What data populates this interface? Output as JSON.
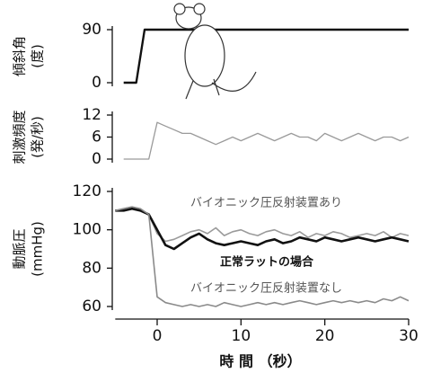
{
  "chart_data": [
    {
      "type": "line",
      "ylabel": [
        "傾斜角",
        "(度)"
      ],
      "xlim": [
        -5,
        30
      ],
      "ylim": [
        0,
        90
      ],
      "yticks": [
        0,
        90
      ],
      "x": [
        -4,
        -2.5,
        -1.5,
        30
      ],
      "values": [
        0,
        0,
        90,
        90
      ],
      "color": "#111111"
    },
    {
      "type": "line",
      "ylabel": [
        "刺激頻度",
        "(発/秒)"
      ],
      "xlim": [
        -5,
        30
      ],
      "ylim": [
        0,
        12
      ],
      "yticks": [
        0,
        6,
        12
      ],
      "x": [
        -4,
        -3,
        -2,
        -1,
        0,
        1,
        2,
        3,
        4,
        5,
        6,
        7,
        8,
        9,
        10,
        11,
        12,
        13,
        14,
        15,
        16,
        17,
        18,
        19,
        20,
        21,
        22,
        23,
        24,
        25,
        26,
        27,
        28,
        29,
        30
      ],
      "values": [
        0,
        0,
        0,
        0,
        10,
        9,
        8,
        7,
        7,
        6,
        5,
        4,
        5,
        6,
        5,
        6,
        7,
        6,
        5,
        6,
        7,
        6,
        6,
        5,
        7,
        6,
        5,
        6,
        7,
        6,
        5,
        6,
        6,
        5,
        6
      ],
      "color": "#9a9a9a"
    },
    {
      "type": "line",
      "ylabel": [
        "動脈圧",
        "(mmHg)"
      ],
      "xlabel": "時 間 （秒）",
      "xlim": [
        -5,
        30
      ],
      "ylim": [
        60,
        120
      ],
      "yticks": [
        60,
        80,
        100,
        120
      ],
      "xticks": [
        0,
        10,
        20,
        30
      ],
      "x": [
        -5,
        -4,
        -3,
        -2,
        -1,
        0,
        1,
        2,
        3,
        4,
        5,
        6,
        7,
        8,
        9,
        10,
        11,
        12,
        13,
        14,
        15,
        16,
        17,
        18,
        19,
        20,
        21,
        22,
        23,
        24,
        25,
        26,
        27,
        28,
        29,
        30
      ],
      "series": [
        {
          "name": "バイオニック圧反射装置あり",
          "color": "#9a9a9a",
          "values": [
            110,
            111,
            112,
            110,
            108,
            98,
            94,
            95,
            97,
            99,
            100,
            98,
            101,
            97,
            99,
            100,
            98,
            97,
            99,
            100,
            98,
            97,
            99,
            96,
            98,
            97,
            99,
            98,
            96,
            97,
            98,
            97,
            99,
            96,
            98,
            97
          ]
        },
        {
          "name": "正常ラットの場合",
          "color": "#111111",
          "values": [
            110,
            110,
            111,
            110,
            108,
            100,
            92,
            90,
            93,
            96,
            98,
            95,
            93,
            92,
            93,
            94,
            93,
            92,
            94,
            95,
            93,
            94,
            96,
            95,
            94,
            96,
            95,
            94,
            95,
            96,
            95,
            94,
            95,
            96,
            95,
            94
          ]
        },
        {
          "name": "バイオニック圧反射装置なし",
          "color": "#8a8a8a",
          "values": [
            110,
            111,
            112,
            111,
            108,
            65,
            62,
            61,
            60,
            61,
            60,
            61,
            60,
            62,
            61,
            60,
            61,
            62,
            61,
            62,
            61,
            62,
            63,
            62,
            61,
            62,
            63,
            62,
            63,
            62,
            63,
            62,
            64,
            63,
            65,
            63
          ]
        }
      ]
    }
  ]
}
